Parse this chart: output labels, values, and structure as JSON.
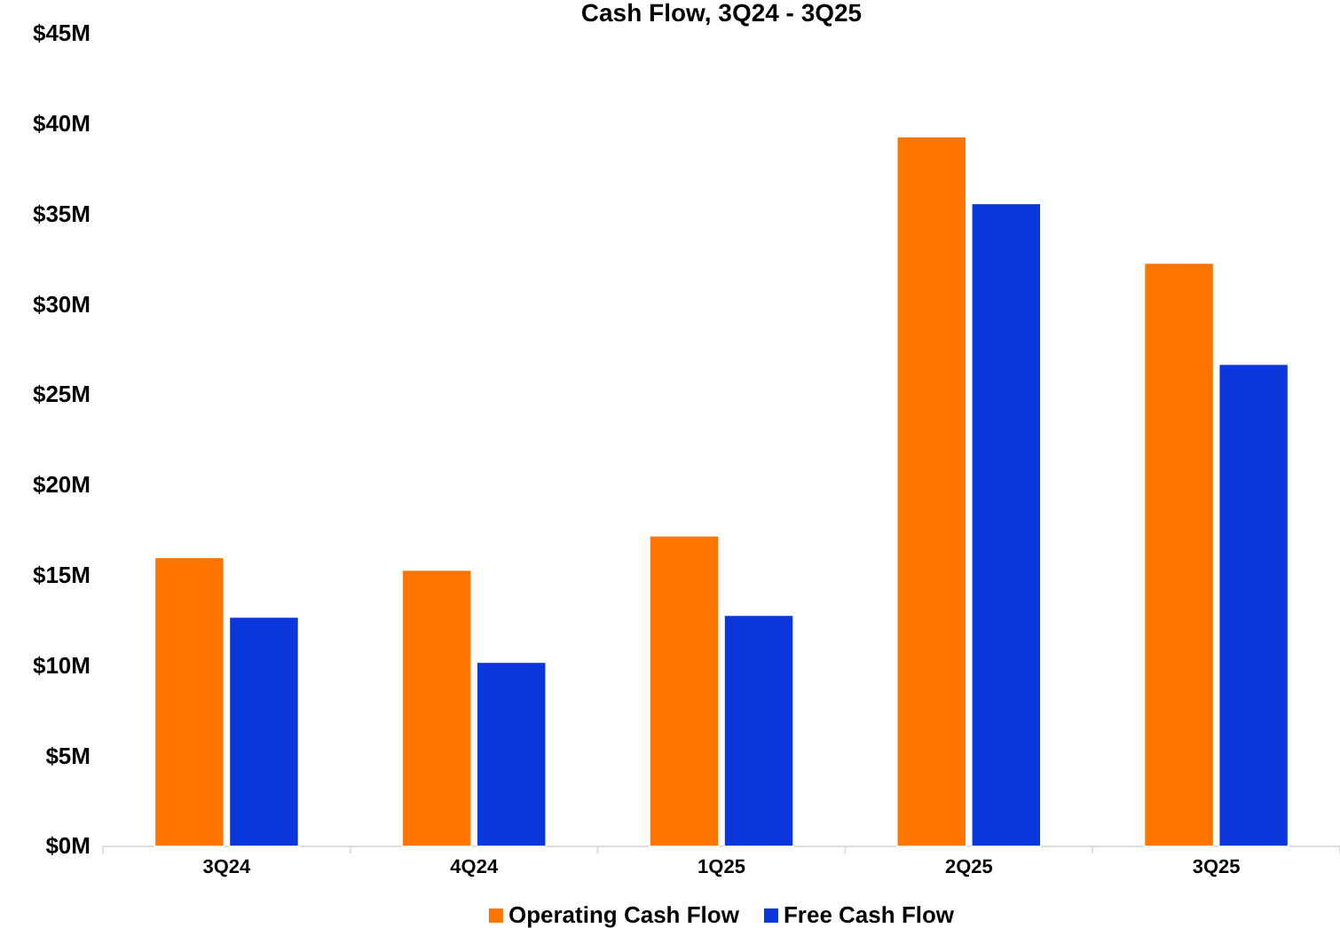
{
  "chart_data": {
    "type": "bar",
    "title": "Cash Flow, 3Q24 - 3Q25",
    "categories": [
      "3Q24",
      "4Q24",
      "1Q25",
      "2Q25",
      "3Q25"
    ],
    "series": [
      {
        "name": "Operating Cash Flow",
        "color": "#ff7500",
        "values": [
          16.0,
          15.3,
          17.2,
          39.3,
          32.3
        ]
      },
      {
        "name": "Free Cash Flow",
        "color": "#0a36dc",
        "values": [
          12.7,
          10.2,
          12.8,
          35.6,
          26.7
        ]
      }
    ],
    "ylim": [
      0,
      45
    ],
    "yticks": [
      {
        "value": 0,
        "label": "$0M"
      },
      {
        "value": 5,
        "label": "$5M"
      },
      {
        "value": 10,
        "label": "$10M"
      },
      {
        "value": 15,
        "label": "$15M"
      },
      {
        "value": 20,
        "label": "$20M"
      },
      {
        "value": 25,
        "label": "$25M"
      },
      {
        "value": 30,
        "label": "$30M"
      },
      {
        "value": 35,
        "label": "$35M"
      },
      {
        "value": 40,
        "label": "$40M"
      },
      {
        "value": 45,
        "label": "$45M"
      }
    ],
    "grid": false,
    "legend": "bottom"
  }
}
